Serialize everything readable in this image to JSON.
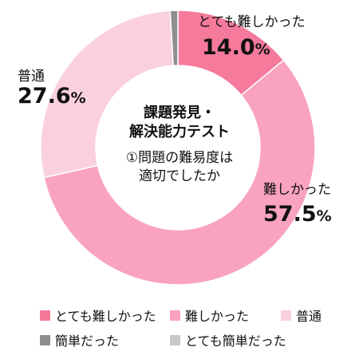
{
  "chart_data": {
    "type": "donut",
    "title_lines": [
      "課題発見・",
      "解決能力テスト"
    ],
    "subtitle_lines": [
      "①問題の難易度は",
      "適切でしたか"
    ],
    "slices": [
      {
        "label": "とても難しかった",
        "value": 14.0,
        "value_text": "14.0",
        "color": "#f57a9b"
      },
      {
        "label": "難しかった",
        "value": 57.5,
        "value_text": "57.5",
        "color": "#f9a3be"
      },
      {
        "label": "普通",
        "value": 27.6,
        "value_text": "27.6",
        "color": "#fbd0de"
      },
      {
        "label": "簡単だった",
        "value": 0.9,
        "value_text": "",
        "color": "#8e8e8e"
      },
      {
        "label": "とても簡単だった",
        "value": 0.0,
        "value_text": "",
        "color": "#c8c8c8"
      }
    ],
    "unit": "%"
  }
}
